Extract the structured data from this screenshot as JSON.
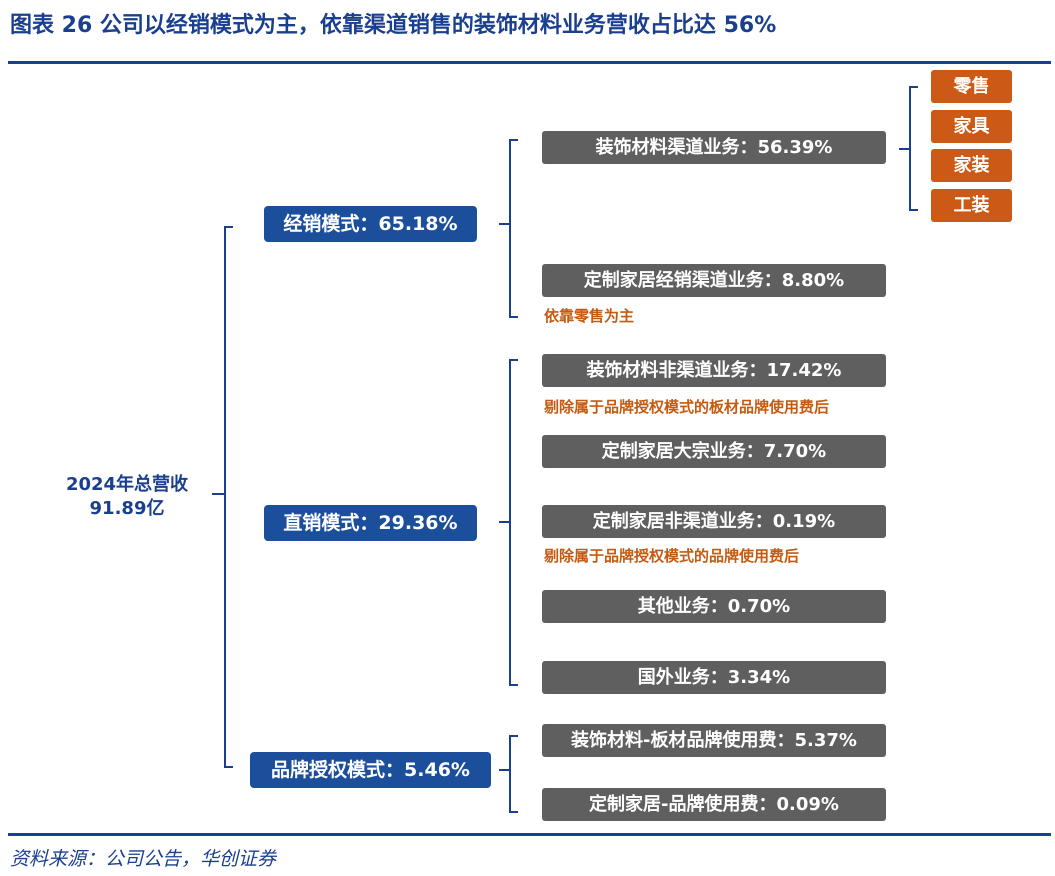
{
  "header": {
    "title": "图表  26    公司以经销模式为主，依靠渠道销售的装饰材料业务营收占比达 56%"
  },
  "root": {
    "line1": "2024年总营收",
    "line2": "91.89亿"
  },
  "modes": [
    {
      "label": "经销模式：65.18%"
    },
    {
      "label": "直销模式：29.36%"
    },
    {
      "label": "品牌授权模式：5.46%"
    }
  ],
  "businesses": [
    {
      "label": "装饰材料渠道业务：56.39%"
    },
    {
      "label": "定制家居经销渠道业务：8.80%"
    },
    {
      "label": "装饰材料非渠道业务：17.42%"
    },
    {
      "label": "定制家居大宗业务：7.70%"
    },
    {
      "label": "定制家居非渠道业务：0.19%"
    },
    {
      "label": "其他业务：0.70%"
    },
    {
      "label": "国外业务：3.34%"
    },
    {
      "label": "装饰材料-板材品牌使用费：5.37%"
    },
    {
      "label": "定制家居-品牌使用费：0.09%"
    }
  ],
  "channels": [
    "零售",
    "家具",
    "家装",
    "工装"
  ],
  "notes": [
    "依靠零售为主",
    "剔除属于品牌授权模式的板材品牌使用费后",
    "剔除属于品牌授权模式的品牌使用费后"
  ],
  "footer": {
    "source": "资料来源：公司公告，华创证券"
  },
  "colors": {
    "brand_blue": "#1b4f9c",
    "title_blue": "#1b3f8f",
    "node_gray": "#5f5f5f",
    "accent_orange": "#cc5a16",
    "note_orange": "#c55a11"
  }
}
